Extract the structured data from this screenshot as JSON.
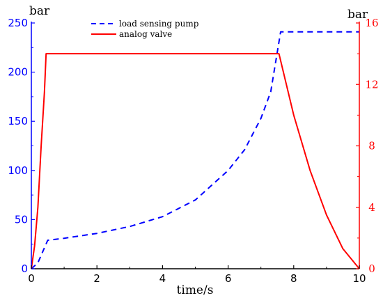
{
  "chart_data": {
    "type": "line",
    "xlabel": "time/s",
    "ylabel_left": "bar",
    "ylabel_right": "bar",
    "xlim": [
      0,
      10
    ],
    "ylim_left": [
      0,
      250
    ],
    "ylim_right": [
      0,
      16
    ],
    "x_ticks": [
      "0",
      "2",
      "4",
      "6",
      "8",
      "10"
    ],
    "y_left_ticks": [
      "0",
      "50",
      "100",
      "150",
      "200",
      "250"
    ],
    "y_right_ticks": [
      "0",
      "4",
      "8",
      "12",
      "16"
    ],
    "grid": false,
    "legend_position": "top-center",
    "colors": {
      "left_axis": "#0000ff",
      "right_axis": "#ff0000",
      "axes": "#000000"
    },
    "series": [
      {
        "name": "load sensing pump",
        "axis": "left",
        "style": "dashed",
        "color": "#0000ff",
        "points": [
          [
            0,
            0
          ],
          [
            0.2,
            6
          ],
          [
            0.5,
            29
          ],
          [
            1.0,
            31
          ],
          [
            2.0,
            36
          ],
          [
            3.0,
            43
          ],
          [
            4.0,
            53
          ],
          [
            5.0,
            70
          ],
          [
            6.0,
            100
          ],
          [
            6.5,
            121
          ],
          [
            7.0,
            153
          ],
          [
            7.3,
            180
          ],
          [
            7.6,
            241
          ],
          [
            8.0,
            241
          ],
          [
            9.0,
            241
          ],
          [
            10.0,
            241
          ]
        ]
      },
      {
        "name": "analog valve",
        "axis": "right",
        "style": "solid",
        "color": "#ff0000",
        "points": [
          [
            0,
            0
          ],
          [
            0.1,
            1.5
          ],
          [
            0.2,
            4
          ],
          [
            0.3,
            8
          ],
          [
            0.4,
            11.5
          ],
          [
            0.45,
            14.0
          ],
          [
            7.55,
            14.0
          ],
          [
            8.0,
            10.0
          ],
          [
            8.5,
            6.4
          ],
          [
            9.0,
            3.5
          ],
          [
            9.5,
            1.3
          ],
          [
            10.0,
            0
          ]
        ]
      }
    ]
  }
}
